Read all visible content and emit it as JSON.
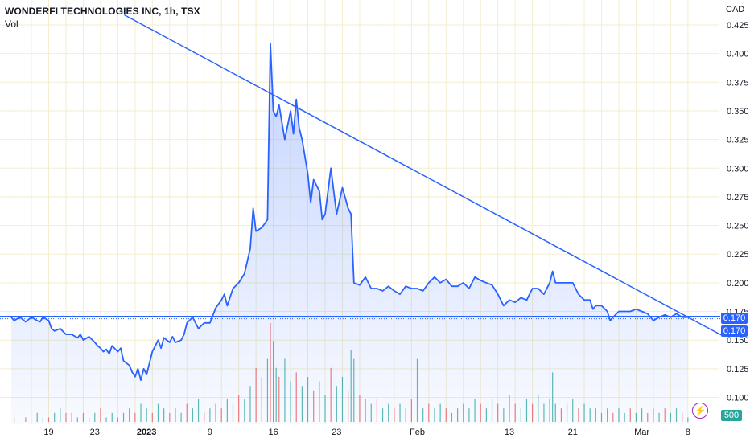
{
  "legend": {
    "title": "WONDERFI TECHNOLOGIES INC, 1h, TSX",
    "vol_label": "Vol"
  },
  "currency": "CAD",
  "price_tag": {
    "line": "0.170",
    "close": "0.170"
  },
  "volume_tag": "500",
  "icon": "lightning-bolt-icon",
  "colors": {
    "line": "#2962ff",
    "price_tag": "#2962ff",
    "vol_up": "#26a69a",
    "vol_down": "#ef5350",
    "grid": "#f3eecf",
    "lightning": "#9c27b0"
  },
  "chart_data": {
    "type": "line",
    "title": "WONDERFI TECHNOLOGIES INC, 1h, TSX",
    "xlabel": "",
    "ylabel": "",
    "ylim": [
      0.09,
      0.43
    ],
    "y_ticks": [
      "0.425",
      "0.400",
      "0.375",
      "0.350",
      "0.325",
      "0.300",
      "0.275",
      "0.250",
      "0.225",
      "0.200",
      "0.175",
      "0.150",
      "0.125",
      "0.100"
    ],
    "x_ticks": [
      {
        "label": "19",
        "x": 3
      },
      {
        "label": "23",
        "x": 11
      },
      {
        "label": "2023",
        "x": 20
      },
      {
        "label": "9",
        "x": 31
      },
      {
        "label": "16",
        "x": 42
      },
      {
        "label": "23",
        "x": 53
      },
      {
        "label": "Feb",
        "x": 67
      },
      {
        "label": "13",
        "x": 83
      },
      {
        "label": "21",
        "x": 94
      },
      {
        "label": "Mar",
        "x": 106
      },
      {
        "label": "8",
        "x": 114
      }
    ],
    "x_range": [
      -3.5,
      115
    ],
    "series": [
      {
        "name": "Price",
        "points": [
          [
            -3.5,
            0.17
          ],
          [
            -3,
            0.167
          ],
          [
            -2,
            0.17
          ],
          [
            -1,
            0.166
          ],
          [
            0,
            0.17
          ],
          [
            1,
            0.167
          ],
          [
            1.5,
            0.166
          ],
          [
            2,
            0.17
          ],
          [
            3,
            0.167
          ],
          [
            3.5,
            0.16
          ],
          [
            4,
            0.158
          ],
          [
            5,
            0.16
          ],
          [
            6,
            0.155
          ],
          [
            7,
            0.155
          ],
          [
            8,
            0.152
          ],
          [
            8.5,
            0.155
          ],
          [
            9,
            0.15
          ],
          [
            10,
            0.153
          ],
          [
            11,
            0.148
          ],
          [
            11.5,
            0.145
          ],
          [
            12,
            0.143
          ],
          [
            12.5,
            0.14
          ],
          [
            13,
            0.142
          ],
          [
            13.5,
            0.138
          ],
          [
            14,
            0.145
          ],
          [
            15,
            0.14
          ],
          [
            15.5,
            0.143
          ],
          [
            16,
            0.132
          ],
          [
            17,
            0.128
          ],
          [
            17.5,
            0.122
          ],
          [
            18,
            0.118
          ],
          [
            18.5,
            0.125
          ],
          [
            19,
            0.115
          ],
          [
            19.5,
            0.125
          ],
          [
            20,
            0.12
          ],
          [
            21,
            0.14
          ],
          [
            22,
            0.15
          ],
          [
            22.5,
            0.143
          ],
          [
            23,
            0.152
          ],
          [
            24,
            0.148
          ],
          [
            24.5,
            0.153
          ],
          [
            25,
            0.148
          ],
          [
            26,
            0.15
          ],
          [
            26.5,
            0.155
          ],
          [
            27,
            0.165
          ],
          [
            28,
            0.17
          ],
          [
            28.5,
            0.165
          ],
          [
            29,
            0.16
          ],
          [
            30,
            0.165
          ],
          [
            31,
            0.165
          ],
          [
            32,
            0.178
          ],
          [
            33,
            0.185
          ],
          [
            33.5,
            0.19
          ],
          [
            34,
            0.18
          ],
          [
            35,
            0.195
          ],
          [
            36,
            0.2
          ],
          [
            37,
            0.208
          ],
          [
            38,
            0.23
          ],
          [
            38.5,
            0.265
          ],
          [
            39,
            0.245
          ],
          [
            40,
            0.248
          ],
          [
            41,
            0.255
          ],
          [
            41.5,
            0.409
          ],
          [
            42,
            0.35
          ],
          [
            42.5,
            0.345
          ],
          [
            43,
            0.355
          ],
          [
            44,
            0.325
          ],
          [
            45,
            0.35
          ],
          [
            45.5,
            0.33
          ],
          [
            46,
            0.36
          ],
          [
            46.5,
            0.335
          ],
          [
            47,
            0.325
          ],
          [
            48,
            0.295
          ],
          [
            48.5,
            0.27
          ],
          [
            49,
            0.29
          ],
          [
            50,
            0.28
          ],
          [
            50.5,
            0.255
          ],
          [
            51,
            0.26
          ],
          [
            52,
            0.3
          ],
          [
            52.5,
            0.28
          ],
          [
            53,
            0.26
          ],
          [
            54,
            0.283
          ],
          [
            55,
            0.265
          ],
          [
            55.5,
            0.26
          ],
          [
            56,
            0.2
          ],
          [
            57,
            0.198
          ],
          [
            58,
            0.205
          ],
          [
            58.5,
            0.2
          ],
          [
            59,
            0.195
          ],
          [
            60,
            0.195
          ],
          [
            61,
            0.193
          ],
          [
            62,
            0.197
          ],
          [
            63,
            0.193
          ],
          [
            64,
            0.19
          ],
          [
            65,
            0.197
          ],
          [
            66,
            0.195
          ],
          [
            67,
            0.195
          ],
          [
            68,
            0.193
          ],
          [
            69,
            0.2
          ],
          [
            70,
            0.205
          ],
          [
            71,
            0.2
          ],
          [
            72,
            0.203
          ],
          [
            73,
            0.197
          ],
          [
            74,
            0.197
          ],
          [
            75,
            0.2
          ],
          [
            76,
            0.195
          ],
          [
            77,
            0.205
          ],
          [
            78,
            0.202
          ],
          [
            79,
            0.2
          ],
          [
            80,
            0.198
          ],
          [
            81,
            0.19
          ],
          [
            82,
            0.18
          ],
          [
            83,
            0.185
          ],
          [
            84,
            0.183
          ],
          [
            85,
            0.187
          ],
          [
            86,
            0.185
          ],
          [
            87,
            0.195
          ],
          [
            88,
            0.195
          ],
          [
            89,
            0.19
          ],
          [
            90,
            0.2
          ],
          [
            90.5,
            0.21
          ],
          [
            91,
            0.2
          ],
          [
            92,
            0.2
          ],
          [
            93,
            0.2
          ],
          [
            94,
            0.2
          ],
          [
            95,
            0.19
          ],
          [
            96,
            0.185
          ],
          [
            97,
            0.185
          ],
          [
            97.5,
            0.177
          ],
          [
            98,
            0.18
          ],
          [
            99,
            0.18
          ],
          [
            100,
            0.175
          ],
          [
            100.5,
            0.167
          ],
          [
            101,
            0.17
          ],
          [
            102,
            0.175
          ],
          [
            103,
            0.175
          ],
          [
            104,
            0.175
          ],
          [
            105,
            0.177
          ],
          [
            106,
            0.175
          ],
          [
            107,
            0.173
          ],
          [
            108,
            0.167
          ],
          [
            109,
            0.17
          ],
          [
            110,
            0.172
          ],
          [
            111,
            0.17
          ],
          [
            112,
            0.173
          ],
          [
            113,
            0.17
          ],
          [
            114,
            0.17
          ]
        ]
      },
      {
        "name": "Trendline",
        "points": [
          [
            17.5,
            0.43
          ],
          [
            41.5,
            0.409
          ],
          [
            114,
            0.17
          ]
        ]
      }
    ],
    "volume": {
      "bars": [
        [
          -3,
          1
        ],
        [
          -1,
          1
        ],
        [
          1,
          2
        ],
        [
          2,
          1
        ],
        [
          3,
          1
        ],
        [
          4,
          2
        ],
        [
          5,
          3
        ],
        [
          6,
          2
        ],
        [
          7,
          2
        ],
        [
          8,
          1
        ],
        [
          9,
          2
        ],
        [
          10,
          1
        ],
        [
          11,
          2
        ],
        [
          12,
          3
        ],
        [
          13,
          1
        ],
        [
          14,
          2
        ],
        [
          15,
          1
        ],
        [
          16,
          2
        ],
        [
          17,
          3
        ],
        [
          18,
          2
        ],
        [
          19,
          4
        ],
        [
          20,
          3
        ],
        [
          21,
          2
        ],
        [
          22,
          4
        ],
        [
          23,
          3
        ],
        [
          24,
          2
        ],
        [
          25,
          3
        ],
        [
          26,
          2
        ],
        [
          27,
          4
        ],
        [
          28,
          3
        ],
        [
          29,
          5
        ],
        [
          30,
          2
        ],
        [
          31,
          3
        ],
        [
          32,
          4
        ],
        [
          33,
          3
        ],
        [
          34,
          5
        ],
        [
          35,
          4
        ],
        [
          36,
          6
        ],
        [
          37,
          5
        ],
        [
          38,
          8
        ],
        [
          39,
          12
        ],
        [
          40,
          10
        ],
        [
          41,
          14
        ],
        [
          41.5,
          22
        ],
        [
          42,
          18
        ],
        [
          42.5,
          12
        ],
        [
          43,
          10
        ],
        [
          44,
          14
        ],
        [
          45,
          9
        ],
        [
          46,
          11
        ],
        [
          47,
          8
        ],
        [
          48,
          10
        ],
        [
          49,
          7
        ],
        [
          50,
          9
        ],
        [
          51,
          6
        ],
        [
          52,
          12
        ],
        [
          53,
          8
        ],
        [
          54,
          10
        ],
        [
          55,
          7
        ],
        [
          55.5,
          16
        ],
        [
          56,
          14
        ],
        [
          57,
          6
        ],
        [
          58,
          5
        ],
        [
          59,
          4
        ],
        [
          60,
          5
        ],
        [
          61,
          3
        ],
        [
          62,
          4
        ],
        [
          63,
          3
        ],
        [
          64,
          4
        ],
        [
          65,
          3
        ],
        [
          66,
          5
        ],
        [
          67,
          14
        ],
        [
          68,
          3
        ],
        [
          69,
          4
        ],
        [
          70,
          3
        ],
        [
          71,
          4
        ],
        [
          72,
          3
        ],
        [
          73,
          2
        ],
        [
          74,
          3
        ],
        [
          75,
          4
        ],
        [
          76,
          3
        ],
        [
          77,
          5
        ],
        [
          78,
          4
        ],
        [
          79,
          3
        ],
        [
          80,
          5
        ],
        [
          81,
          4
        ],
        [
          82,
          3
        ],
        [
          83,
          6
        ],
        [
          84,
          4
        ],
        [
          85,
          3
        ],
        [
          86,
          5
        ],
        [
          87,
          4
        ],
        [
          88,
          6
        ],
        [
          89,
          4
        ],
        [
          90,
          5
        ],
        [
          90.5,
          11
        ],
        [
          91,
          4
        ],
        [
          92,
          3
        ],
        [
          93,
          4
        ],
        [
          94,
          5
        ],
        [
          95,
          3
        ],
        [
          96,
          4
        ],
        [
          97,
          3
        ],
        [
          98,
          3
        ],
        [
          99,
          2
        ],
        [
          100,
          3
        ],
        [
          101,
          2
        ],
        [
          102,
          3
        ],
        [
          103,
          2
        ],
        [
          104,
          3
        ],
        [
          105,
          2
        ],
        [
          106,
          3
        ],
        [
          107,
          2
        ],
        [
          108,
          3
        ],
        [
          109,
          2
        ],
        [
          110,
          3
        ],
        [
          111,
          2
        ],
        [
          112,
          3
        ],
        [
          113,
          2
        ],
        [
          114,
          1
        ]
      ],
      "ymax": 25
    },
    "grid": true
  }
}
